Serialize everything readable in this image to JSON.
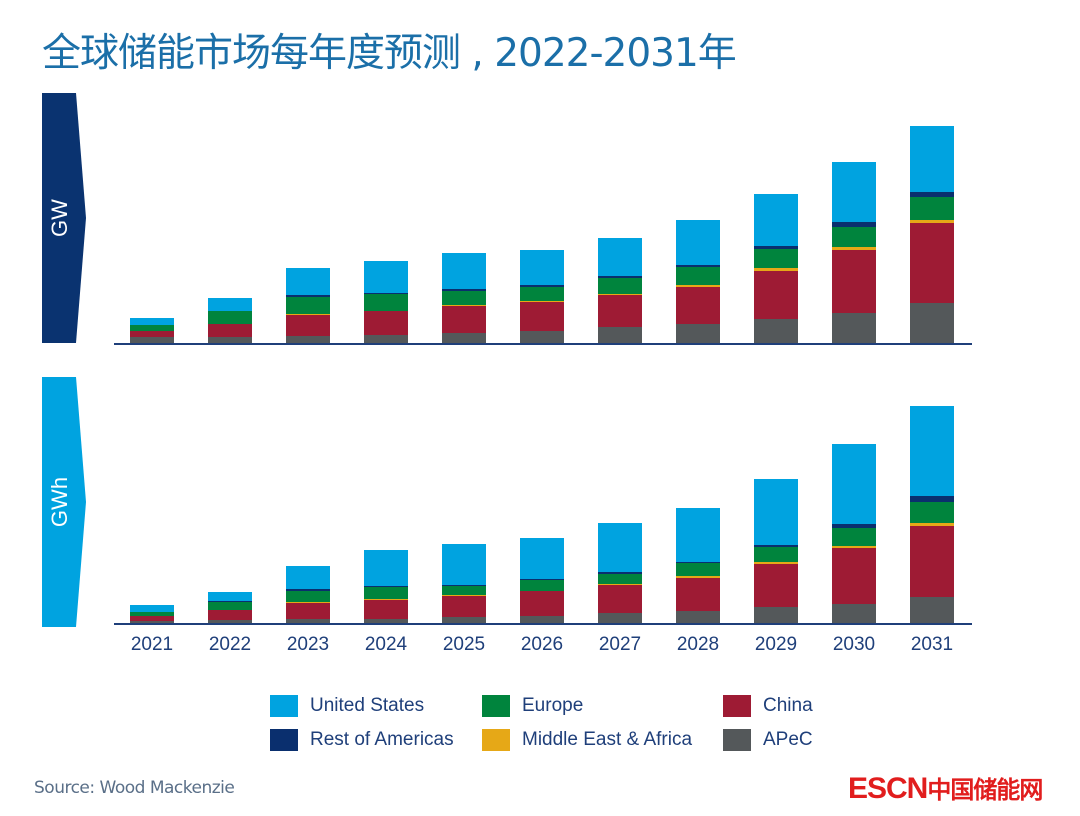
{
  "title": "全球储能市场每年度预测 , 2022-2031年",
  "source": "Source: Wood Mackenzie",
  "brand": {
    "latin": "ESCN",
    "cn": "中国储能网",
    "color": "#e11d1d"
  },
  "colors": {
    "United States": "#00a3e0",
    "Rest of Americas": "#0a2f6e",
    "Europe": "#00843d",
    "Middle East & Africa": "#e6a817",
    "China": "#9e1b34",
    "APeC": "#54585a",
    "axis": "#1f3f7a",
    "gw_tag": "#0a3370",
    "gwh_tag": "#00a3e0"
  },
  "legend": [
    {
      "label": "United States",
      "color": "#00a3e0"
    },
    {
      "label": "Europe",
      "color": "#00843d"
    },
    {
      "label": "China",
      "color": "#9e1b34"
    },
    {
      "label": "Rest of Americas",
      "color": "#0a2f6e"
    },
    {
      "label": "Middle East & Africa",
      "color": "#e6a817"
    },
    {
      "label": "APeC",
      "color": "#54585a"
    }
  ],
  "chart_data": [
    {
      "type": "bar",
      "stacked": true,
      "title": "GW",
      "unit_label": "GW",
      "ylabel": "GW (relative, no axis shown)",
      "grid": false,
      "legend_position": "bottom",
      "categories": [
        "2021",
        "2022",
        "2023",
        "2024",
        "2025",
        "2026",
        "2027",
        "2028",
        "2029",
        "2030",
        "2031"
      ],
      "ylim": [
        0,
        220
      ],
      "series": [
        {
          "name": "APeC",
          "values": [
            6,
            6,
            7,
            8,
            10,
            12,
            16,
            19,
            24,
            30,
            40
          ]
        },
        {
          "name": "China",
          "values": [
            6,
            13,
            21,
            24,
            27,
            29,
            32,
            37,
            48,
            63,
            80
          ]
        },
        {
          "name": "Middle East & Africa",
          "values": [
            0,
            0,
            1,
            0,
            1,
            1,
            1,
            2,
            3,
            3,
            3
          ]
        },
        {
          "name": "Europe",
          "values": [
            6,
            13,
            17,
            17,
            14,
            14,
            16,
            18,
            19,
            20,
            23
          ]
        },
        {
          "name": "Rest of Americas",
          "values": [
            0,
            0,
            2,
            1,
            2,
            2,
            2,
            2,
            3,
            5,
            5
          ]
        },
        {
          "name": "United States",
          "values": [
            7,
            13,
            27,
            32,
            36,
            35,
            38,
            45,
            52,
            60,
            66
          ]
        }
      ]
    },
    {
      "type": "bar",
      "stacked": true,
      "title": "GWh",
      "unit_label": "GWh",
      "ylabel": "GWh (relative, no axis shown)",
      "grid": false,
      "legend_position": "bottom",
      "categories": [
        "2021",
        "2022",
        "2023",
        "2024",
        "2025",
        "2026",
        "2027",
        "2028",
        "2029",
        "2030",
        "2031"
      ],
      "ylim": [
        0,
        220
      ],
      "series": [
        {
          "name": "APeC",
          "values": [
            2,
            3,
            4,
            4,
            6,
            7,
            10,
            12,
            16,
            19,
            26
          ]
        },
        {
          "name": "China",
          "values": [
            5,
            10,
            16,
            19,
            21,
            25,
            28,
            33,
            43,
            56,
            71
          ]
        },
        {
          "name": "Middle East & Africa",
          "values": [
            0,
            0,
            1,
            1,
            1,
            0,
            1,
            2,
            2,
            2,
            3
          ]
        },
        {
          "name": "Europe",
          "values": [
            4,
            8,
            11,
            12,
            9,
            11,
            10,
            13,
            15,
            18,
            21
          ]
        },
        {
          "name": "Rest of Americas",
          "values": [
            0,
            1,
            2,
            1,
            1,
            1,
            2,
            1,
            2,
            4,
            6
          ]
        },
        {
          "name": "United States",
          "values": [
            7,
            9,
            23,
            36,
            41,
            41,
            49,
            54,
            66,
            80,
            90
          ]
        }
      ]
    }
  ]
}
